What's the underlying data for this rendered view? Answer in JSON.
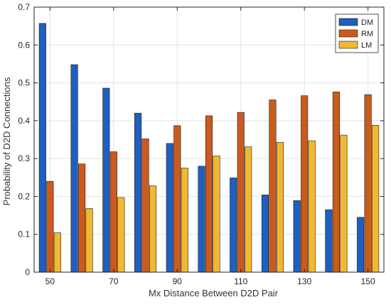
{
  "chart_data": {
    "type": "bar",
    "xlabel": "Mx Distance Between D2D Pair",
    "ylabel": "Probability of D2D Connections",
    "categories": [
      50,
      60,
      70,
      80,
      90,
      100,
      110,
      120,
      130,
      140,
      150
    ],
    "x_tick_labels": [
      "50",
      "70",
      "90",
      "110",
      "130",
      "150"
    ],
    "x_tick_values": [
      50,
      70,
      90,
      110,
      130,
      150
    ],
    "y_tick_labels": [
      "0",
      "0.1",
      "0.2",
      "0.3",
      "0.4",
      "0.5",
      "0.6",
      "0.7"
    ],
    "ylim": [
      0,
      0.7
    ],
    "xlim": [
      45,
      155
    ],
    "grid": true,
    "legend_position": "top-right",
    "series": [
      {
        "name": "DM",
        "color": "#1f5fbf",
        "values": [
          0.657,
          0.548,
          0.486,
          0.42,
          0.34,
          0.28,
          0.249,
          0.204,
          0.189,
          0.165,
          0.145
        ]
      },
      {
        "name": "RM",
        "color": "#cc5a1e",
        "values": [
          0.24,
          0.286,
          0.318,
          0.352,
          0.387,
          0.413,
          0.422,
          0.455,
          0.466,
          0.476,
          0.469
        ]
      },
      {
        "name": "LM",
        "color": "#f2b830",
        "values": [
          0.104,
          0.168,
          0.197,
          0.228,
          0.275,
          0.307,
          0.331,
          0.343,
          0.347,
          0.362,
          0.388
        ]
      }
    ]
  }
}
